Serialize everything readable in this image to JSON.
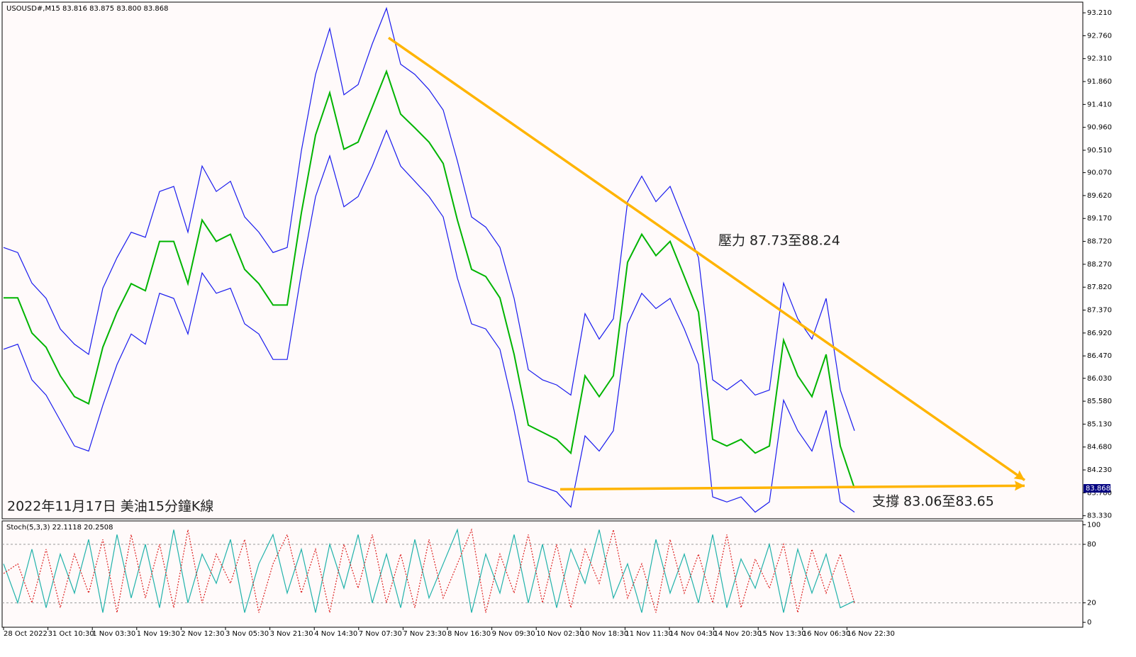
{
  "chart_data": [
    {
      "type": "line",
      "title": "USOUSD#,M15 83.816 83.875 83.800 83.868",
      "annotations": [
        "壓力 87.73至88.24",
        "支撐 83.06至83.65",
        "2022年11月17日 美油15分鐘K線"
      ],
      "last_price": 83.868,
      "ylim": [
        83.27,
        93.42
      ],
      "yticks": [
        {
          "value": 93.21,
          "label": "93.210"
        },
        {
          "value": 92.76,
          "label": "92.760"
        },
        {
          "value": 92.31,
          "label": "92.310"
        },
        {
          "value": 91.86,
          "label": "91.860"
        },
        {
          "value": 91.41,
          "label": "91.410"
        },
        {
          "value": 90.96,
          "label": "90.960"
        },
        {
          "value": 90.51,
          "label": "90.510"
        },
        {
          "value": 90.07,
          "label": "90.070"
        },
        {
          "value": 89.62,
          "label": "89.620"
        },
        {
          "value": 89.17,
          "label": "89.170"
        },
        {
          "value": 88.72,
          "label": "88.720"
        },
        {
          "value": 88.27,
          "label": "88.270"
        },
        {
          "value": 87.82,
          "label": "87.820"
        },
        {
          "value": 87.37,
          "label": "87.370"
        },
        {
          "value": 86.92,
          "label": "86.920"
        },
        {
          "value": 86.47,
          "label": "86.470"
        },
        {
          "value": 86.03,
          "label": "86.030"
        },
        {
          "value": 85.58,
          "label": "85.580"
        },
        {
          "value": 85.13,
          "label": "85.130"
        },
        {
          "value": 84.68,
          "label": "84.680"
        },
        {
          "value": 84.23,
          "label": "84.230"
        },
        {
          "value": 83.78,
          "label": "83.780"
        },
        {
          "value": 83.33,
          "label": "83.330"
        }
      ],
      "xticks": [
        {
          "value": 0,
          "label": "28 Oct 2022"
        },
        {
          "value": 3.13,
          "label": "31 Oct 10:30"
        },
        {
          "value": 6.26,
          "label": "1 Nov 03:30"
        },
        {
          "value": 9.39,
          "label": "1 Nov 19:30"
        },
        {
          "value": 12.52,
          "label": "2 Nov 12:30"
        },
        {
          "value": 15.65,
          "label": "3 Nov 05:30"
        },
        {
          "value": 18.78,
          "label": "3 Nov 21:30"
        },
        {
          "value": 21.91,
          "label": "4 Nov 14:30"
        },
        {
          "value": 25.04,
          "label": "7 Nov 07:30"
        },
        {
          "value": 28.17,
          "label": "7 Nov 23:30"
        },
        {
          "value": 31.3,
          "label": "8 Nov 16:30"
        },
        {
          "value": 34.43,
          "label": "9 Nov 09:30"
        },
        {
          "value": 37.56,
          "label": "10 Nov 02:30"
        },
        {
          "value": 40.69,
          "label": "10 Nov 18:30"
        },
        {
          "value": 43.82,
          "label": "11 Nov 11:30"
        },
        {
          "value": 46.95,
          "label": "14 Nov 04:30"
        },
        {
          "value": 50.08,
          "label": "14 Nov 20:30"
        },
        {
          "value": 53.21,
          "label": "15 Nov 13:30"
        },
        {
          "value": 56.34,
          "label": "16 Nov 06:30"
        },
        {
          "value": 59.47,
          "label": "16 Nov 22:30"
        }
      ],
      "series": [
        {
          "color": "#00b400",
          "values": [
            87.61,
            87.61,
            86.92,
            86.64,
            86.08,
            85.67,
            85.53,
            86.64,
            87.33,
            87.89,
            87.75,
            88.72,
            88.72,
            87.89,
            89.14,
            88.72,
            88.86,
            88.17,
            87.89,
            87.47,
            87.47,
            89.28,
            90.81,
            91.64,
            90.53,
            90.67,
            91.36,
            92.06,
            91.22,
            90.95,
            90.67,
            90.25,
            89.14,
            88.17,
            88.03,
            87.61,
            86.5,
            85.11,
            84.97,
            84.83,
            84.56,
            86.08,
            85.67,
            86.08,
            88.31,
            88.86,
            88.44,
            88.72,
            88.03,
            87.33,
            84.83,
            84.7,
            84.83,
            84.56,
            84.7,
            86.78,
            86.08,
            85.67,
            86.5,
            84.7,
            83.87
          ]
        },
        {
          "color": "#1a1aee",
          "values": [
            88.6,
            88.5,
            87.9,
            87.6,
            87.0,
            86.7,
            86.5,
            87.8,
            88.4,
            88.9,
            88.8,
            89.7,
            89.8,
            88.9,
            90.2,
            89.7,
            89.9,
            89.2,
            88.9,
            88.5,
            88.6,
            90.5,
            92.0,
            92.9,
            91.6,
            91.8,
            92.6,
            93.3,
            92.2,
            92.0,
            91.7,
            91.3,
            90.3,
            89.2,
            89.0,
            88.6,
            87.6,
            86.2,
            86.0,
            85.9,
            85.7,
            87.3,
            86.8,
            87.2,
            89.5,
            90.0,
            89.5,
            89.8,
            89.1,
            88.4,
            86.0,
            85.8,
            86.0,
            85.7,
            85.8,
            87.9,
            87.2,
            86.8,
            87.6,
            85.8,
            85.0
          ]
        },
        {
          "color": "#1a1aee",
          "values": [
            86.6,
            86.7,
            86.0,
            85.7,
            85.2,
            84.7,
            84.6,
            85.5,
            86.3,
            86.9,
            86.7,
            87.7,
            87.6,
            86.9,
            88.1,
            87.7,
            87.8,
            87.1,
            86.9,
            86.4,
            86.4,
            88.1,
            89.6,
            90.4,
            89.4,
            89.6,
            90.2,
            90.9,
            90.2,
            89.9,
            89.6,
            89.2,
            88.0,
            87.1,
            87.0,
            86.6,
            85.4,
            84.0,
            83.9,
            83.8,
            83.5,
            84.9,
            84.6,
            85.0,
            87.1,
            87.7,
            87.4,
            87.6,
            87.0,
            86.3,
            83.7,
            83.6,
            83.7,
            83.4,
            83.6,
            85.6,
            85.0,
            84.6,
            85.4,
            83.6,
            83.4
          ]
        }
      ],
      "trendlines": [
        {
          "color": "#ffb400",
          "x": [
            27.15,
            72
          ],
          "y": [
            92.72,
            84.03
          ]
        },
        {
          "color": "#ffb400",
          "x": [
            39.25,
            72
          ],
          "y": [
            83.85,
            83.92
          ]
        }
      ]
    },
    {
      "type": "line",
      "title": "Stoch(5,3,3) 22.1118 20.2508",
      "ylim": [
        -5,
        104
      ],
      "yticks": [
        100,
        80,
        20,
        0
      ],
      "series": [
        {
          "color": "#20b2aa",
          "values": [
            60,
            20,
            75,
            15,
            70,
            30,
            85,
            10,
            90,
            25,
            80,
            15,
            95,
            20,
            70,
            40,
            85,
            10,
            60,
            90,
            30,
            75,
            10,
            80,
            35,
            90,
            20,
            70,
            15,
            85,
            25,
            60,
            95,
            10,
            70,
            30,
            90,
            20,
            80,
            15,
            75,
            40,
            95,
            25,
            60,
            10,
            85,
            30,
            70,
            20,
            90,
            15,
            65,
            35,
            80,
            10,
            75,
            30,
            70,
            15,
            22
          ]
        },
        {
          "color": "#dd2222",
          "values": [
            50,
            60,
            20,
            75,
            15,
            70,
            30,
            85,
            10,
            90,
            25,
            80,
            15,
            95,
            20,
            70,
            40,
            85,
            10,
            60,
            90,
            30,
            75,
            10,
            80,
            35,
            90,
            20,
            70,
            15,
            85,
            25,
            60,
            95,
            10,
            70,
            30,
            90,
            20,
            80,
            15,
            75,
            40,
            95,
            25,
            60,
            10,
            85,
            30,
            70,
            20,
            90,
            15,
            65,
            35,
            80,
            10,
            75,
            30,
            70,
            20
          ]
        }
      ]
    }
  ]
}
